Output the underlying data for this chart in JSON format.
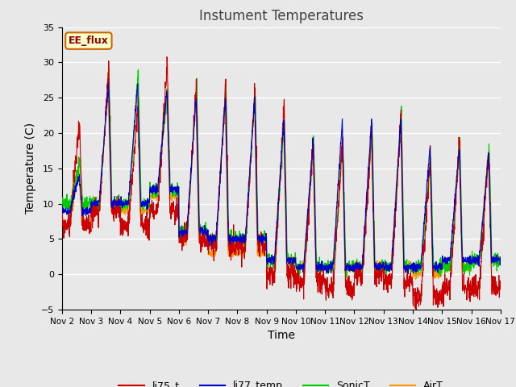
{
  "title": "Instument Temperatures",
  "xlabel": "Time",
  "ylabel": "Temperature (C)",
  "ylim": [
    -5,
    35
  ],
  "x_tick_days": [
    2,
    3,
    4,
    5,
    6,
    7,
    8,
    9,
    10,
    11,
    12,
    13,
    14,
    15,
    16,
    17
  ],
  "n_days": 15,
  "pts_per_day": 144,
  "series_colors": {
    "li75_t": "#cc0000",
    "li77_temp": "#0000cc",
    "SonicT": "#00cc00",
    "AirT": "#ff9900"
  },
  "legend_label": "EE_flux",
  "legend_box_facecolor": "#ffffcc",
  "legend_box_edgecolor": "#cc6600",
  "plot_bg_color": "#e8e8e8",
  "fig_bg_color": "#e8e8e8",
  "grid_color": "#ffffff",
  "title_color": "#444444",
  "ee_flux_text_color": "#8b0000",
  "figsize": [
    6.4,
    4.8
  ],
  "dpi": 100
}
